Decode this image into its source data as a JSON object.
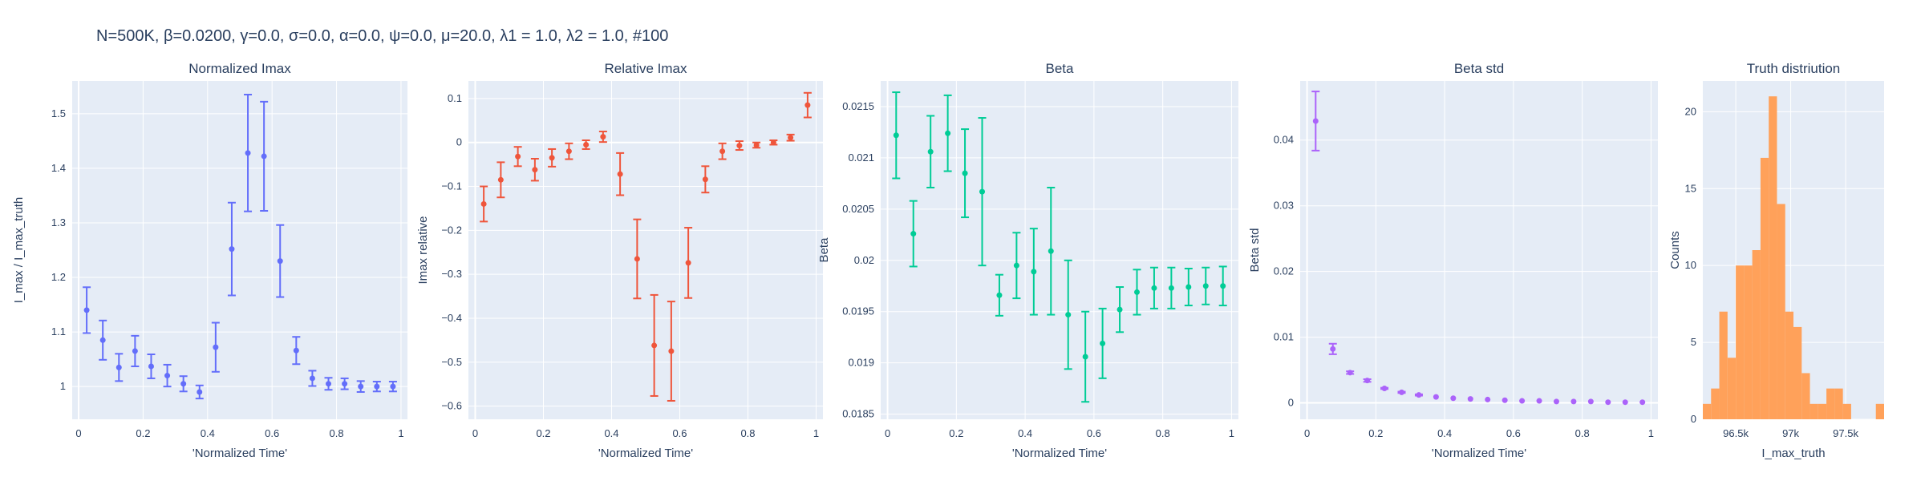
{
  "figure": {
    "title": "N=500K, β=0.0200, γ=0.0, σ=0.0,  α=0.0, ψ=0.0, μ=20.0, λ1 = 1.0, λ2 = 1.0, #100"
  },
  "chart_data": [
    {
      "type": "scatter",
      "title": "Normalized Imax",
      "xlabel": "'Normalized Time'",
      "ylabel": "I_max / I_max_truth",
      "color": "#636efa",
      "xlim": [
        -0.02,
        1.02
      ],
      "ylim": [
        0.94,
        1.56
      ],
      "xticks": [
        0,
        0.2,
        0.4,
        0.6,
        0.8,
        1
      ],
      "xtick_labels": [
        "0",
        "0.2",
        "0.4",
        "0.6",
        "0.8",
        "1"
      ],
      "yticks": [
        1,
        1.1,
        1.2,
        1.3,
        1.4,
        1.5
      ],
      "ytick_labels": [
        "1",
        "1.1",
        "1.2",
        "1.3",
        "1.4",
        "1.5"
      ],
      "x": [
        0.025,
        0.075,
        0.125,
        0.175,
        0.225,
        0.275,
        0.325,
        0.375,
        0.425,
        0.475,
        0.525,
        0.575,
        0.625,
        0.675,
        0.725,
        0.775,
        0.825,
        0.875,
        0.925,
        0.975
      ],
      "y": [
        1.14,
        1.085,
        1.035,
        1.065,
        1.037,
        1.02,
        1.005,
        0.99,
        1.072,
        1.252,
        1.428,
        1.422,
        1.23,
        1.066,
        1.015,
        1.005,
        1.005,
        1.0,
        1.0,
        1.0
      ],
      "err": [
        0.042,
        0.036,
        0.025,
        0.028,
        0.022,
        0.02,
        0.014,
        0.012,
        0.045,
        0.085,
        0.107,
        0.1,
        0.066,
        0.025,
        0.014,
        0.011,
        0.01,
        0.01,
        0.009,
        0.009
      ]
    },
    {
      "type": "scatter",
      "title": "Relative Imax",
      "xlabel": "'Normalized Time'",
      "ylabel": "Imax relative",
      "color": "#ef553b",
      "xlim": [
        -0.02,
        1.02
      ],
      "ylim": [
        -0.63,
        0.14
      ],
      "xticks": [
        0,
        0.2,
        0.4,
        0.6,
        0.8,
        1
      ],
      "xtick_labels": [
        "0",
        "0.2",
        "0.4",
        "0.6",
        "0.8",
        "1"
      ],
      "yticks": [
        -0.6,
        -0.5,
        -0.4,
        -0.3,
        -0.2,
        -0.1,
        0,
        0.1
      ],
      "ytick_labels": [
        "−0.6",
        "−0.5",
        "−0.4",
        "−0.3",
        "−0.2",
        "−0.1",
        "0",
        "0.1"
      ],
      "x": [
        0.025,
        0.075,
        0.125,
        0.175,
        0.225,
        0.275,
        0.325,
        0.375,
        0.425,
        0.475,
        0.525,
        0.575,
        0.625,
        0.675,
        0.725,
        0.775,
        0.825,
        0.875,
        0.925,
        0.975
      ],
      "y": [
        -0.14,
        -0.085,
        -0.032,
        -0.062,
        -0.035,
        -0.02,
        -0.005,
        0.013,
        -0.072,
        -0.265,
        -0.462,
        -0.475,
        -0.274,
        -0.084,
        -0.02,
        -0.007,
        -0.006,
        0.0,
        0.011,
        0.085
      ],
      "err": [
        0.04,
        0.04,
        0.022,
        0.025,
        0.02,
        0.018,
        0.01,
        0.012,
        0.048,
        0.09,
        0.115,
        0.113,
        0.08,
        0.03,
        0.018,
        0.01,
        0.006,
        0.005,
        0.007,
        0.028
      ]
    },
    {
      "type": "scatter",
      "title": "Beta",
      "xlabel": "'Normalized Time'",
      "ylabel": "Beta",
      "color": "#00cc96",
      "xlim": [
        -0.02,
        1.02
      ],
      "ylim": [
        0.01845,
        0.02175
      ],
      "xticks": [
        0,
        0.2,
        0.4,
        0.6,
        0.8,
        1
      ],
      "xtick_labels": [
        "0",
        "0.2",
        "0.4",
        "0.6",
        "0.8",
        "1"
      ],
      "yticks": [
        0.0185,
        0.019,
        0.0195,
        0.02,
        0.0205,
        0.021,
        0.0215
      ],
      "ytick_labels": [
        "0.0185",
        "0.019",
        "0.0195",
        "0.02",
        "0.0205",
        "0.021",
        "0.0215"
      ],
      "x": [
        0.025,
        0.075,
        0.125,
        0.175,
        0.225,
        0.275,
        0.325,
        0.375,
        0.425,
        0.475,
        0.525,
        0.575,
        0.625,
        0.675,
        0.725,
        0.775,
        0.825,
        0.875,
        0.925,
        0.975
      ],
      "y": [
        0.02122,
        0.02026,
        0.02106,
        0.02124,
        0.02085,
        0.02067,
        0.01966,
        0.01995,
        0.01989,
        0.02009,
        0.01947,
        0.01906,
        0.01919,
        0.01952,
        0.01969,
        0.01973,
        0.01973,
        0.01974,
        0.01975,
        0.01975
      ],
      "err": [
        0.00042,
        0.00032,
        0.00035,
        0.00037,
        0.00043,
        0.00072,
        0.0002,
        0.00032,
        0.00042,
        0.00062,
        0.00053,
        0.00044,
        0.00034,
        0.00022,
        0.00022,
        0.0002,
        0.0002,
        0.00018,
        0.00018,
        0.00019
      ]
    },
    {
      "type": "scatter",
      "title": "Beta std",
      "xlabel": "'Normalized Time'",
      "ylabel": "Beta std",
      "color": "#ab63fa",
      "xlim": [
        -0.02,
        1.02
      ],
      "ylim": [
        -0.0025,
        0.049
      ],
      "xticks": [
        0,
        0.2,
        0.4,
        0.6,
        0.8,
        1
      ],
      "xtick_labels": [
        "0",
        "0.2",
        "0.4",
        "0.6",
        "0.8",
        "1"
      ],
      "yticks": [
        0,
        0.01,
        0.02,
        0.03,
        0.04
      ],
      "ytick_labels": [
        "0",
        "0.01",
        "0.02",
        "0.03",
        "0.04"
      ],
      "x": [
        0.025,
        0.075,
        0.125,
        0.175,
        0.225,
        0.275,
        0.325,
        0.375,
        0.425,
        0.475,
        0.525,
        0.575,
        0.625,
        0.675,
        0.725,
        0.775,
        0.825,
        0.875,
        0.925,
        0.975
      ],
      "y": [
        0.0429,
        0.0082,
        0.0046,
        0.0034,
        0.0022,
        0.0016,
        0.0012,
        0.0009,
        0.0007,
        0.0006,
        0.0005,
        0.0004,
        0.0003,
        0.0003,
        0.0002,
        0.0002,
        0.0002,
        0.0001,
        0.0001,
        0.0001
      ],
      "err": [
        0.0045,
        0.0008,
        0.0002,
        0.0002,
        0.0001,
        0.0001,
        0.0001,
        0.0,
        0.0,
        0.0,
        0.0,
        0.0,
        0.0,
        0.0,
        0.0,
        0.0,
        0.0,
        0.0,
        0.0,
        0.0
      ]
    },
    {
      "type": "bar",
      "title": "Truth distriution",
      "xlabel": "I_max_truth",
      "ylabel": "Counts",
      "color": "#ffa15a",
      "xlim": [
        96200,
        97850
      ],
      "ylim": [
        0,
        22
      ],
      "xticks": [
        96500,
        97000,
        97500
      ],
      "xtick_labels": [
        "96.5k",
        "97k",
        "97.5k"
      ],
      "yticks": [
        0,
        5,
        10,
        15,
        20
      ],
      "ytick_labels": [
        "0",
        "5",
        "10",
        "15",
        "20"
      ],
      "bin_width": 75,
      "x": [
        96200,
        96275,
        96350,
        96425,
        96500,
        96575,
        96650,
        96725,
        96800,
        96875,
        96950,
        97025,
        97100,
        97175,
        97250,
        97325,
        97400,
        97475,
        97550,
        97625,
        97700,
        97775
      ],
      "values": [
        1,
        2,
        7,
        4,
        10,
        10,
        11,
        17,
        21,
        14,
        7,
        6,
        3,
        1,
        1,
        2,
        2,
        1,
        0,
        0,
        0,
        1
      ]
    }
  ]
}
